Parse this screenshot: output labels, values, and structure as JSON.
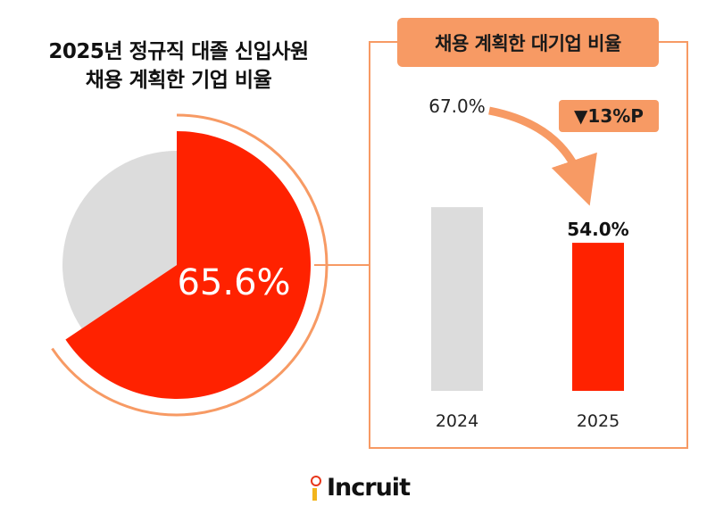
{
  "title": {
    "line1": "2025년 정규직 대졸 신입사원",
    "line2": "채용 계획한 기업 비율"
  },
  "panel_title": "채용 계획한 대기업 비율",
  "change_badge": "▼13%P",
  "brand": "Incruit",
  "colors": {
    "accent": "#ff2200",
    "orange": "#f79a64",
    "gray": "#dcdcdc",
    "text": "#111111"
  },
  "chart_data": [
    {
      "type": "pie",
      "title": "2025년 정규직 대졸 신입사원 채용 계획한 기업 비율",
      "values": [
        65.6,
        34.4
      ],
      "label": "65.6%"
    },
    {
      "type": "bar",
      "title": "채용 계획한 대기업 비율",
      "categories": [
        "2024",
        "2025"
      ],
      "values": [
        67.0,
        54.0
      ],
      "value_labels": [
        "67.0%",
        "54.0%"
      ],
      "ylim": [
        0,
        100
      ],
      "annotation": "▼13%P"
    }
  ]
}
